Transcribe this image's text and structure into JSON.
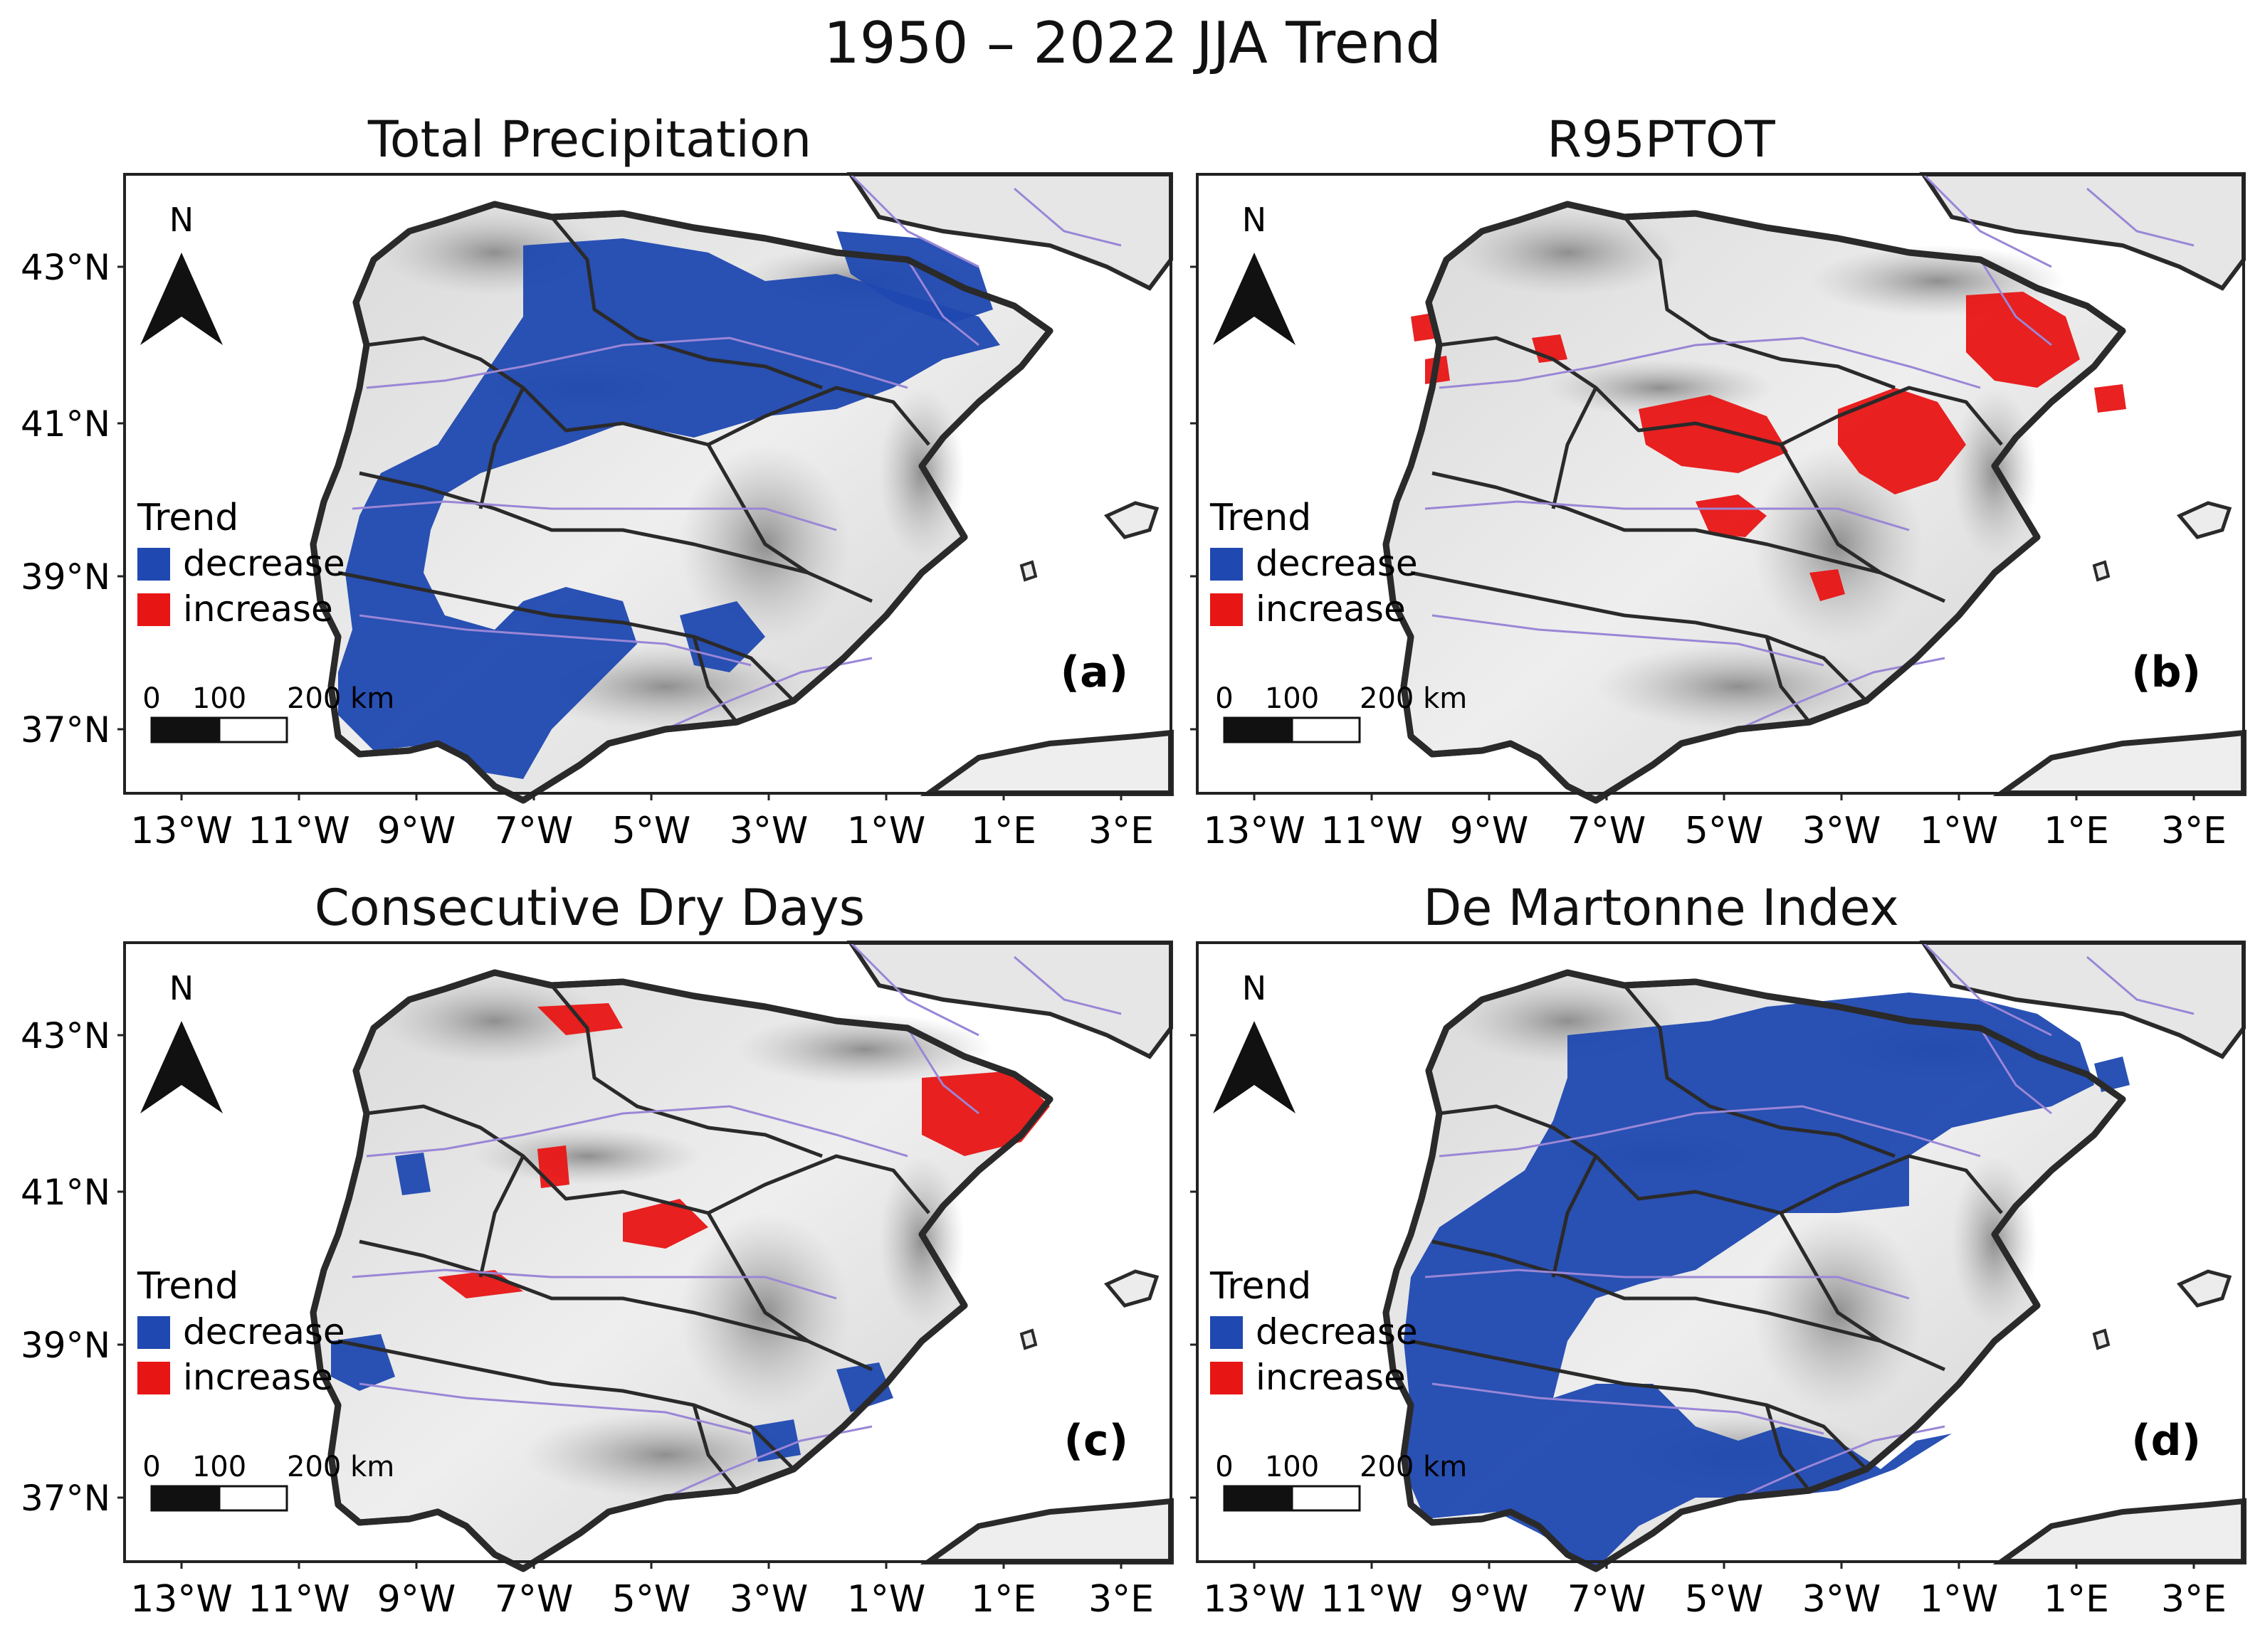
{
  "title": "1950 – 2022 JJA Trend",
  "panels": [
    {
      "id": "a",
      "title": "Total Precipitation",
      "letter": "(a)"
    },
    {
      "id": "b",
      "title": "R95PTOT",
      "letter": "(b)"
    },
    {
      "id": "c",
      "title": "Consecutive Dry Days",
      "letter": "(c)"
    },
    {
      "id": "d",
      "title": "De Martonne Index",
      "letter": "(d)"
    }
  ],
  "legend": {
    "title": "Trend",
    "items": [
      {
        "label": "decrease",
        "color": "#1f48b0"
      },
      {
        "label": "increase",
        "color": "#e81515"
      }
    ]
  },
  "scale_bar": {
    "labels": [
      "0",
      "100",
      "200 km"
    ]
  },
  "north_arrow": "N",
  "lat_labels": [
    "43°N",
    "41°N",
    "39°N",
    "37°N"
  ],
  "lon_labels": [
    "13°W",
    "11°W",
    "9°W",
    "7°W",
    "5°W",
    "3°W",
    "1°W",
    "1°E",
    "3°E"
  ],
  "colors": {
    "decrease": "#1f48b0",
    "increase": "#e81515",
    "frame": "#222222",
    "river": "#9a86d6",
    "border": "#2a2a2a"
  }
}
